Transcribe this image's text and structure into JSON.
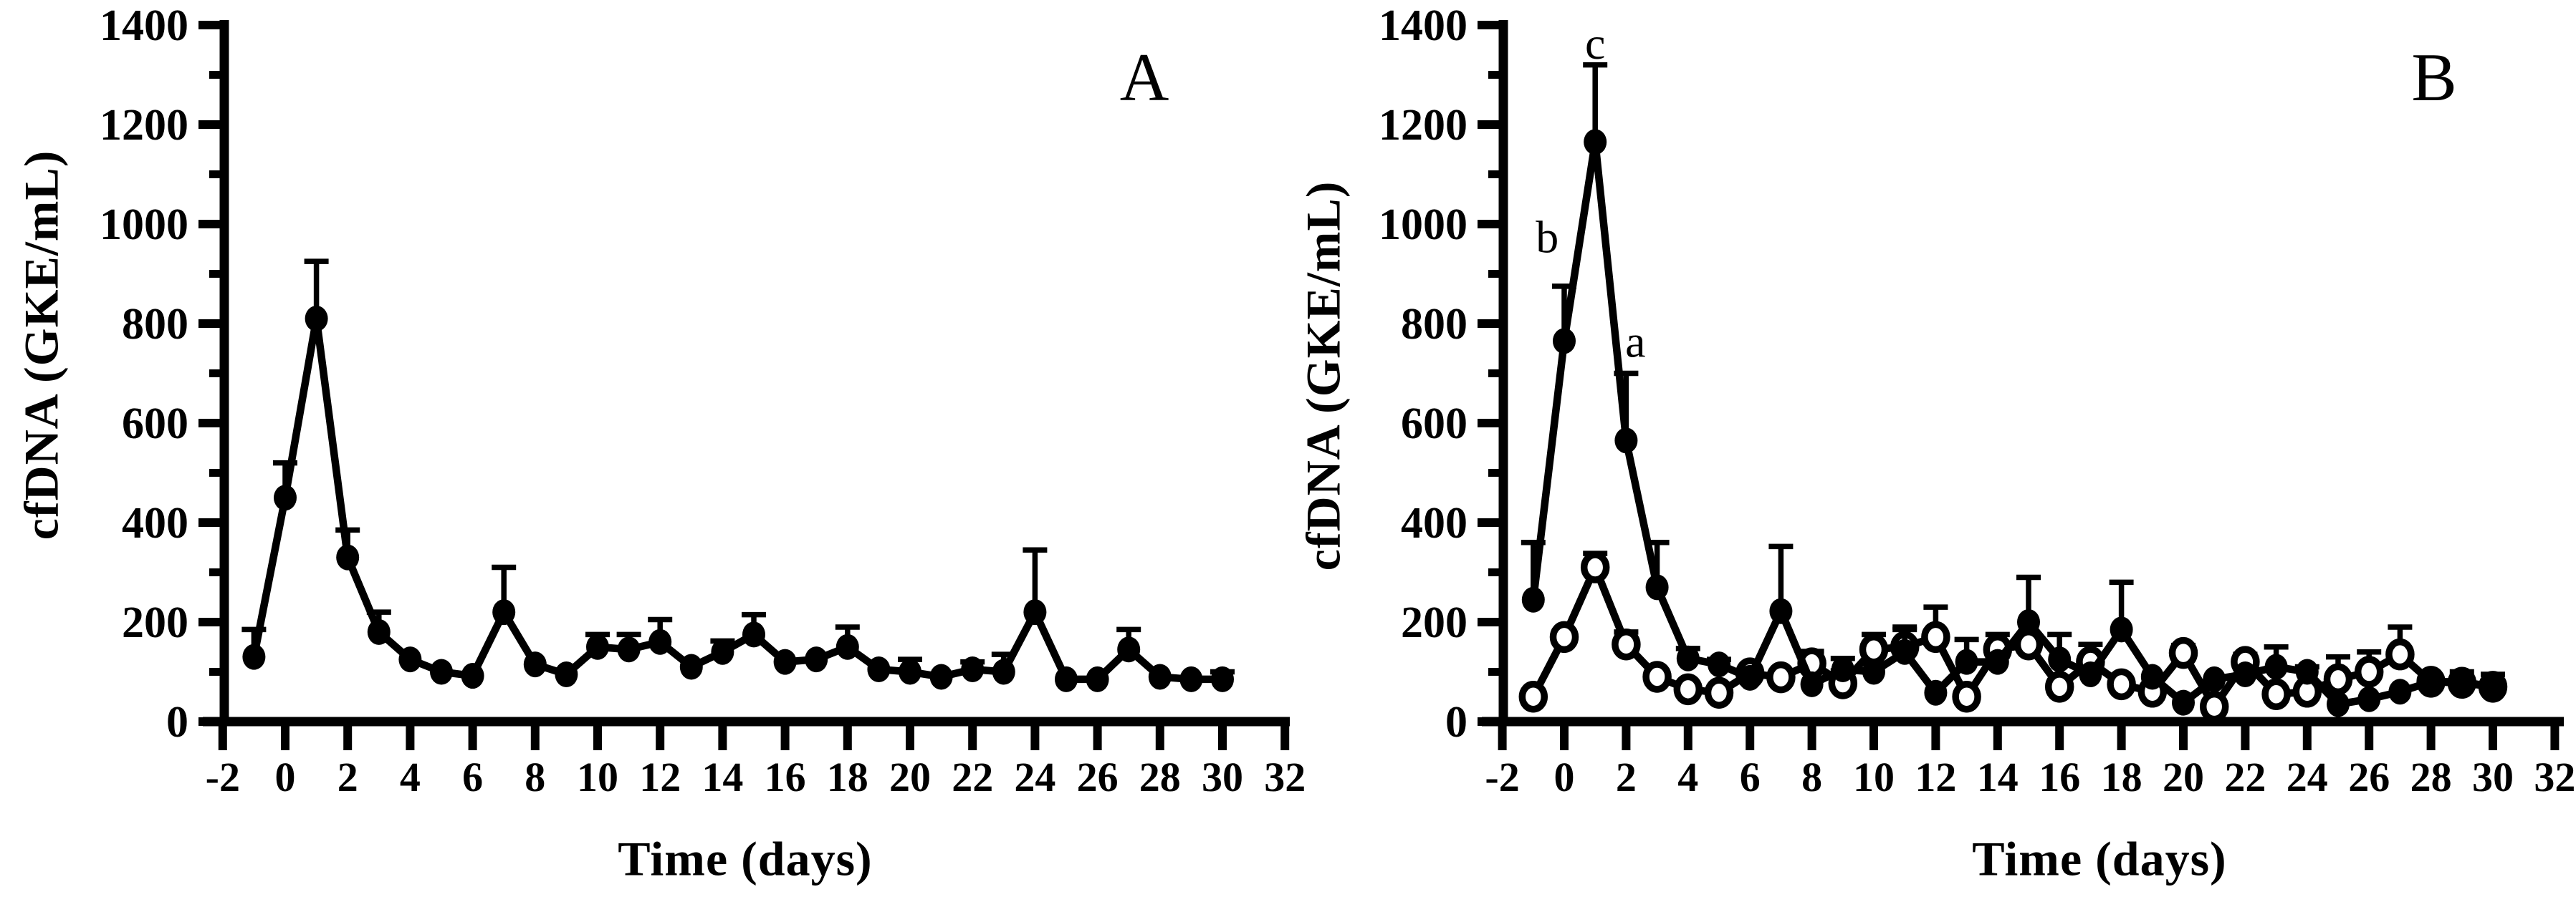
{
  "figure": {
    "background_color": "#ffffff",
    "ink_color": "#000000"
  },
  "chart_data": [
    {
      "type": "line",
      "panel_letter": "A",
      "title": "",
      "xlabel": "Time (days)",
      "ylabel": "cfDNA (GKE/mL)",
      "xlim": [
        -2,
        32
      ],
      "ylim": [
        0,
        1400
      ],
      "grid": false,
      "legend": "none",
      "x_ticks": [
        -2,
        0,
        2,
        4,
        6,
        8,
        10,
        12,
        14,
        16,
        18,
        20,
        22,
        24,
        26,
        28,
        30,
        32
      ],
      "x_tick_labels": [
        "-2",
        "0",
        "2",
        "4",
        "6",
        "8",
        "10",
        "12",
        "14",
        "16",
        "18",
        "20",
        "22",
        "24",
        "26",
        "28",
        "30",
        "32"
      ],
      "y_ticks": [
        0,
        200,
        400,
        600,
        800,
        1000,
        1200,
        1400
      ],
      "y_tick_labels": [
        "0",
        "200",
        "400",
        "600",
        "800",
        "1000",
        "1200",
        "1400"
      ],
      "y_minor_ticks": [
        100,
        300,
        500,
        700,
        900,
        1100,
        1300
      ],
      "x": [
        -1,
        0,
        1,
        2,
        3,
        4,
        5,
        6,
        7,
        8,
        9,
        10,
        11,
        12,
        13,
        14,
        15,
        16,
        17,
        18,
        19,
        20,
        21,
        22,
        23,
        24,
        25,
        26,
        27,
        28,
        29,
        30
      ],
      "series": [
        {
          "name": "cfDNA",
          "marker": "filled-circle",
          "values": [
            130,
            450,
            810,
            330,
            180,
            125,
            100,
            92,
            220,
            115,
            95,
            150,
            145,
            160,
            110,
            140,
            175,
            120,
            125,
            150,
            105,
            100,
            90,
            105,
            100,
            220,
            85,
            85,
            145,
            90,
            85,
            85
          ],
          "err_up": [
            55,
            70,
            115,
            55,
            40,
            0,
            0,
            0,
            90,
            0,
            0,
            25,
            30,
            45,
            0,
            22,
            40,
            0,
            0,
            40,
            0,
            25,
            0,
            15,
            35,
            125,
            0,
            0,
            40,
            0,
            0,
            15
          ]
        }
      ],
      "annotations": []
    },
    {
      "type": "line",
      "panel_letter": "B",
      "title": "",
      "xlabel": "Time (days)",
      "ylabel": "cfDNA (GKE/mL)",
      "xlim": [
        -2,
        32
      ],
      "ylim": [
        0,
        1400
      ],
      "grid": false,
      "legend": "none",
      "x_ticks": [
        -2,
        0,
        2,
        4,
        6,
        8,
        10,
        12,
        14,
        16,
        18,
        20,
        22,
        24,
        26,
        28,
        30,
        32
      ],
      "x_tick_labels": [
        "-2",
        "0",
        "2",
        "4",
        "6",
        "8",
        "10",
        "12",
        "14",
        "16",
        "18",
        "20",
        "22",
        "24",
        "26",
        "28",
        "30",
        "32"
      ],
      "y_ticks": [
        0,
        200,
        400,
        600,
        800,
        1000,
        1200,
        1400
      ],
      "y_tick_labels": [
        "0",
        "200",
        "400",
        "600",
        "800",
        "1000",
        "1200",
        "1400"
      ],
      "y_minor_ticks": [
        100,
        300,
        500,
        700,
        900,
        1100,
        1300
      ],
      "x": [
        -1,
        0,
        1,
        2,
        3,
        4,
        5,
        6,
        7,
        8,
        9,
        10,
        11,
        12,
        13,
        14,
        15,
        16,
        17,
        18,
        19,
        20,
        21,
        22,
        23,
        24,
        25,
        26,
        27,
        28,
        29,
        30
      ],
      "series": [
        {
          "name": "open-circle-group",
          "marker": "open-circle",
          "values": [
            50,
            170,
            310,
            155,
            90,
            65,
            58,
            97,
            89,
            117,
            77,
            145,
            150,
            170,
            50,
            145,
            155,
            70,
            120,
            75,
            60,
            138,
            30,
            120,
            55,
            60,
            85,
            100,
            135,
            80,
            78,
            70
          ],
          "err_up": [
            0,
            0,
            28,
            25,
            0,
            0,
            0,
            0,
            0,
            24,
            25,
            30,
            40,
            60,
            0,
            30,
            15,
            0,
            35,
            0,
            0,
            15,
            0,
            15,
            0,
            0,
            45,
            40,
            55,
            0,
            0,
            0
          ]
        },
        {
          "name": "filled-circle-group",
          "marker": "filled-circle",
          "values": [
            245,
            765,
            1165,
            565,
            270,
            127,
            115,
            88,
            222,
            75,
            105,
            100,
            140,
            58,
            120,
            120,
            200,
            125,
            95,
            185,
            90,
            38,
            85,
            95,
            110,
            100,
            35,
            45,
            60,
            80,
            80,
            70
          ],
          "err_up": [
            115,
            110,
            155,
            135,
            90,
            20,
            10,
            0,
            130,
            0,
            22,
            0,
            45,
            0,
            45,
            12,
            90,
            50,
            0,
            95,
            0,
            0,
            0,
            12,
            40,
            10,
            0,
            0,
            0,
            0,
            20,
            25
          ]
        }
      ],
      "annotations": [
        {
          "label": "b",
          "x": -0.55,
          "y": 975
        },
        {
          "label": "c",
          "x": 1.0,
          "y": 1364
        },
        {
          "label": "a",
          "x": 2.3,
          "y": 765
        }
      ]
    }
  ]
}
